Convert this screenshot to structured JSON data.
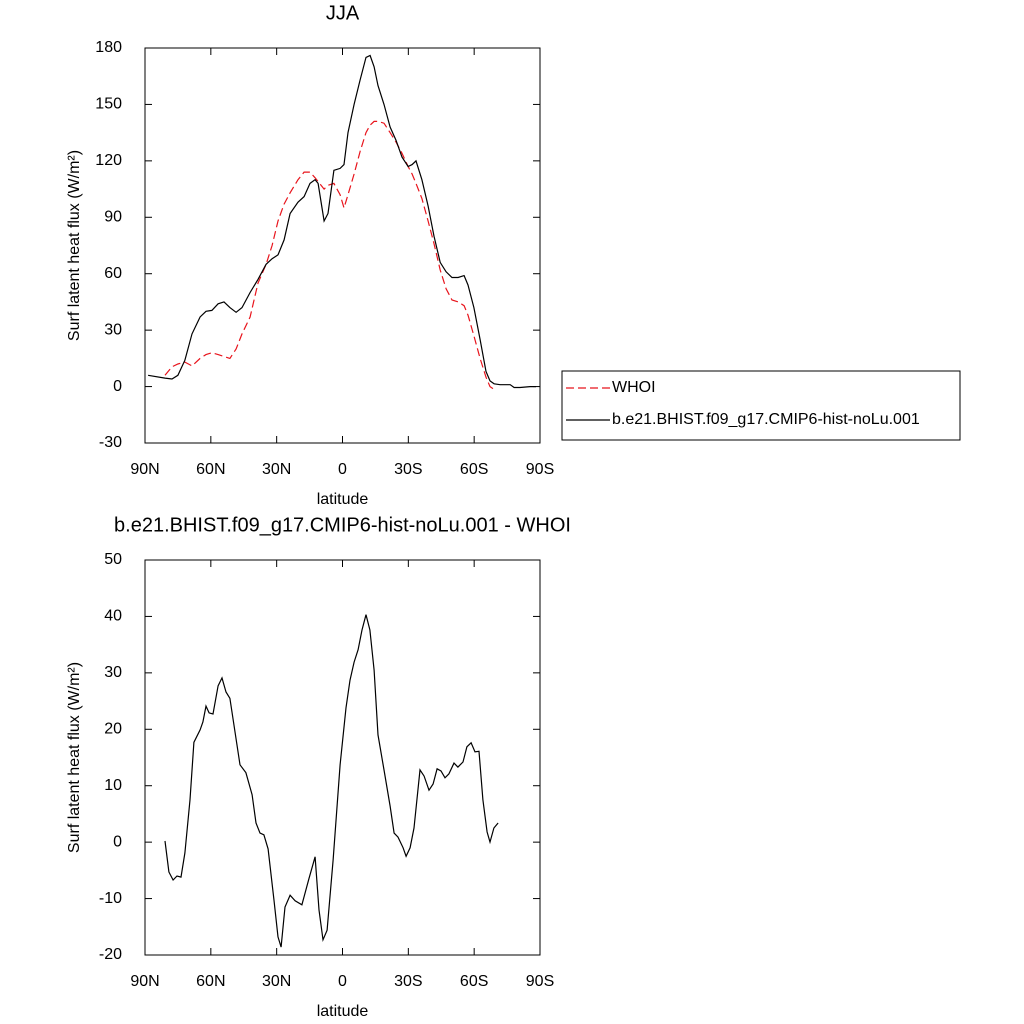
{
  "chart_data": [
    {
      "type": "line",
      "title": "JJA",
      "x_label": "latitude",
      "y_label": "Surf latent heat flux (W/m²)",
      "xlim": [
        90,
        -90
      ],
      "xticks": [
        {
          "value": 90,
          "label": "90N"
        },
        {
          "value": 60,
          "label": "60N"
        },
        {
          "value": 30,
          "label": "30N"
        },
        0,
        {
          "value": -30,
          "label": "30S"
        },
        {
          "value": -60,
          "label": "60S"
        },
        {
          "value": -90,
          "label": "90S"
        }
      ],
      "ylim": [
        -30,
        180
      ],
      "yticks": [
        -30,
        0,
        30,
        60,
        90,
        120,
        150,
        180
      ],
      "legend": "right",
      "x": [
        88.6,
        80.9,
        77.7,
        75.0,
        71.8,
        68.6,
        64.9,
        62.2,
        59.5,
        56.7,
        54.0,
        51.3,
        48.5,
        45.8,
        42.1,
        38.5,
        34.8,
        32.1,
        29.4,
        26.6,
        23.9,
        20.3,
        17.5,
        14.8,
        12.5,
        11.1,
        8.4,
        6.6,
        3.9,
        1.1,
        -0.7,
        -2.5,
        -5.3,
        -8.0,
        -10.7,
        -12.6,
        -14.4,
        -16.2,
        -18.9,
        -21.7,
        -24.4,
        -27.1,
        -29.9,
        -31.7,
        -33.5,
        -36.2,
        -39.0,
        -41.7,
        -44.5,
        -47.2,
        -49.9,
        -52.7,
        -55.4,
        -57.2,
        -59.9,
        -62.7,
        -65.4,
        -67.2,
        -69.1,
        -71.8,
        -76.4,
        -78.2,
        -80.9,
        -85.5,
        -88.2
      ],
      "series": [
        {
          "name": "WHOI",
          "color": "#e8141c",
          "dashed": true,
          "values": [
            null,
            6,
            10.5,
            12,
            13,
            11,
            15,
            17,
            18,
            17,
            16,
            15,
            20,
            28,
            37,
            55,
            65,
            75,
            88,
            97,
            103,
            110,
            114,
            114,
            111,
            109,
            105,
            107,
            108,
            102,
            95,
            102,
            113,
            125,
            135,
            139,
            141,
            141,
            140,
            135,
            130,
            124,
            117,
            113,
            108,
            100,
            88,
            76,
            62,
            52,
            46,
            45,
            43,
            38,
            27,
            15,
            5,
            0,
            -1.5,
            null,
            null,
            null,
            null,
            null,
            null
          ]
        },
        {
          "name": "b.e21.BHIST.f09_g17.CMIP6-hist-noLu.001",
          "color": "#000000",
          "dashed": false,
          "values": [
            6,
            4.5,
            4,
            6,
            14,
            28,
            37,
            40,
            40.5,
            44,
            45,
            42,
            39.5,
            42,
            50,
            57,
            65,
            68,
            70,
            78,
            92,
            98,
            101,
            108,
            110,
            108,
            88,
            92,
            115,
            116,
            118,
            135,
            150,
            163,
            175,
            176,
            170,
            160,
            150,
            138,
            131,
            122,
            117,
            118,
            120,
            110,
            96,
            80,
            66,
            61,
            58,
            58,
            59,
            54,
            42,
            25,
            8,
            3,
            1.5,
            1,
            1,
            -0.5,
            -0.5,
            0,
            0
          ]
        }
      ]
    },
    {
      "type": "line",
      "title": "b.e21.BHIST.f09_g17.CMIP6-hist-noLu.001 - WHOI",
      "x_label": "latitude",
      "y_label": "Surf latent heat flux (W/m²)",
      "xlim": [
        90,
        -90
      ],
      "xticks": [
        {
          "value": 90,
          "label": "90N"
        },
        {
          "value": 60,
          "label": "60N"
        },
        {
          "value": 30,
          "label": "30N"
        },
        0,
        {
          "value": -30,
          "label": "30S"
        },
        {
          "value": -60,
          "label": "60S"
        },
        {
          "value": -90,
          "label": "90S"
        }
      ],
      "ylim": [
        -20,
        50
      ],
      "yticks": [
        -20,
        -10,
        0,
        10,
        20,
        30,
        40,
        50
      ],
      "x": [
        80.9,
        79.1,
        77.2,
        75.4,
        73.6,
        71.8,
        69.5,
        67.7,
        64.9,
        63.6,
        62.2,
        60.8,
        59.0,
        56.7,
        54.9,
        53.1,
        51.3,
        46.7,
        44.0,
        41.2,
        39.4,
        37.6,
        35.8,
        33.9,
        31.2,
        29.4,
        28.0,
        26.2,
        23.9,
        21.6,
        18.5,
        15.3,
        12.5,
        10.7,
        8.9,
        7.0,
        4.3,
        1.1,
        -1.6,
        -3.4,
        -5.3,
        -7.1,
        -8.9,
        -10.7,
        -12.5,
        -14.4,
        -16.2,
        -18.9,
        -21.7,
        -23.5,
        -25.3,
        -27.6,
        -29.0,
        -30.8,
        -32.6,
        -35.3,
        -37.2,
        -39.4,
        -41.3,
        -43.1,
        -44.9,
        -46.7,
        -48.5,
        -50.8,
        -52.6,
        -54.9,
        -56.7,
        -58.6,
        -60.4,
        -62.2,
        -64.0,
        -65.9,
        -67.2,
        -69.0,
        -70.9
      ],
      "series": [
        {
          "color": "#000000",
          "dashed": false,
          "values": [
            0.2,
            -5.3,
            -6.7,
            -6.0,
            -6.2,
            -1.9,
            7.5,
            17.7,
            19.9,
            21.3,
            24.1,
            22.9,
            22.7,
            27.7,
            29.1,
            26.6,
            25.5,
            13.7,
            12.3,
            8.4,
            3.4,
            1.6,
            1.3,
            -1.2,
            -10.3,
            -16.8,
            -18.6,
            -11.5,
            -9.4,
            -10.4,
            -11.1,
            -6.5,
            -2.6,
            -12.0,
            -17.3,
            -15.6,
            -3.2,
            13.7,
            23.8,
            28.7,
            31.9,
            34.1,
            37.6,
            40.3,
            37.6,
            30.5,
            19.0,
            12.8,
            6.4,
            1.6,
            0.9,
            -1.0,
            -2.5,
            -1.0,
            2.5,
            12.8,
            11.7,
            9.2,
            10.3,
            13.0,
            12.6,
            11.4,
            12.1,
            14.0,
            13.3,
            14.2,
            16.9,
            17.6,
            16.0,
            16.1,
            7.5,
            1.8,
            0.0,
            2.5,
            3.4
          ]
        }
      ]
    }
  ]
}
